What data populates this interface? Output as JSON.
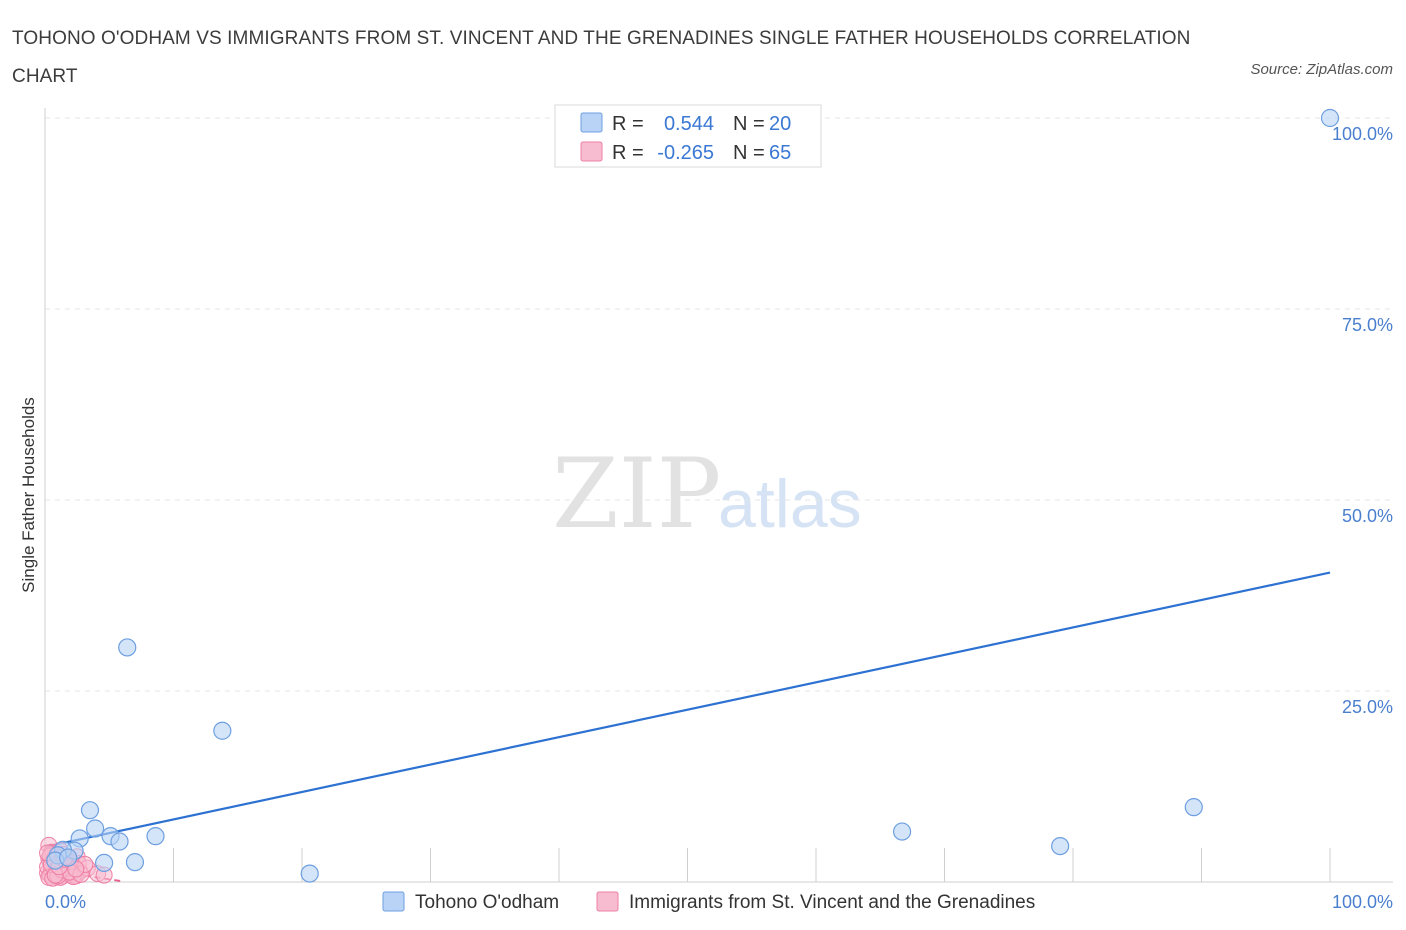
{
  "title": "TOHONO O'ODHAM VS IMMIGRANTS FROM ST. VINCENT AND THE GRENADINES SINGLE FATHER HOUSEHOLDS CORRELATION CHART",
  "source": "Source: ZipAtlas.com",
  "watermark": {
    "zip": "ZIP",
    "atlas": "atlas"
  },
  "legend": {
    "r_label": "R =",
    "n_label": "N =",
    "rows": [
      {
        "r": "0.544",
        "n": "20"
      },
      {
        "r": "-0.265",
        "n": "65"
      }
    ]
  },
  "colors": {
    "blue_fill": "#b8d3f5",
    "blue_stroke": "#6e9fe0",
    "blue_line": "#2d72d2",
    "pink_fill": "#f8bcd0",
    "pink_stroke": "#ee7fa4",
    "pink_line": "#e8608e",
    "value_text": "#3a78d4",
    "grid": "#e4e4e4"
  },
  "chart_data": {
    "type": "scatter",
    "title": "TOHONO O'ODHAM VS IMMIGRANTS FROM ST. VINCENT AND THE GRENADINES SINGLE FATHER HOUSEHOLDS CORRELATION CHART",
    "xlabel": "",
    "ylabel": "Single Father Households",
    "xlim": [
      0,
      100
    ],
    "ylim": [
      0,
      100
    ],
    "x_tick_labels": [
      "0.0%",
      "100.0%"
    ],
    "y_tick_labels": [
      "100.0%",
      "75.0%",
      "50.0%",
      "25.0%"
    ],
    "y_ticks": [
      100,
      75,
      50,
      25
    ],
    "grid": true,
    "legend_position": "top-center",
    "series": [
      {
        "name": "Tohono O'odham",
        "color": "blue",
        "r": 0.544,
        "n": 20,
        "points": [
          [
            100,
            100
          ],
          [
            6.4,
            30.7
          ],
          [
            13.8,
            19.8
          ],
          [
            3.5,
            9.4
          ],
          [
            3.9,
            7.0
          ],
          [
            5.1,
            6.0
          ],
          [
            8.6,
            6.0
          ],
          [
            2.7,
            5.7
          ],
          [
            5.8,
            5.3
          ],
          [
            2.3,
            4.1
          ],
          [
            1.4,
            4.2
          ],
          [
            7.0,
            2.6
          ],
          [
            4.6,
            2.5
          ],
          [
            20.6,
            1.1
          ],
          [
            66.7,
            6.6
          ],
          [
            79.0,
            4.7
          ],
          [
            89.4,
            9.8
          ],
          [
            1.0,
            3.5
          ],
          [
            0.8,
            2.8
          ],
          [
            1.8,
            3.2
          ]
        ],
        "trend": {
          "x": [
            0,
            100
          ],
          "y": [
            4.6,
            40.5
          ]
        }
      },
      {
        "name": "Immigrants from St. Vincent and the Grenadines",
        "color": "pink",
        "r": -0.265,
        "n": 65,
        "points": [
          [
            0.3,
            4.8
          ],
          [
            0.5,
            3.9
          ],
          [
            0.8,
            3.5
          ],
          [
            1.0,
            2.9
          ],
          [
            1.2,
            4.1
          ],
          [
            1.4,
            3.6
          ],
          [
            0.4,
            2.6
          ],
          [
            0.6,
            2.1
          ],
          [
            0.9,
            1.8
          ],
          [
            1.1,
            2.4
          ],
          [
            1.3,
            1.9
          ],
          [
            1.5,
            2.7
          ],
          [
            1.7,
            3.1
          ],
          [
            1.9,
            2.2
          ],
          [
            2.1,
            1.6
          ],
          [
            2.3,
            2.0
          ],
          [
            2.5,
            3.3
          ],
          [
            2.7,
            1.4
          ],
          [
            0.2,
            1.2
          ],
          [
            0.4,
            0.9
          ],
          [
            0.7,
            1.1
          ],
          [
            0.9,
            0.7
          ],
          [
            1.2,
            1.3
          ],
          [
            1.4,
            0.8
          ],
          [
            1.6,
            1.5
          ],
          [
            1.8,
            1.0
          ],
          [
            2.0,
            0.9
          ],
          [
            2.2,
            1.2
          ],
          [
            2.4,
            0.8
          ],
          [
            0.3,
            3.1
          ],
          [
            0.5,
            1.6
          ],
          [
            0.8,
            2.5
          ],
          [
            1.0,
            1.4
          ],
          [
            1.3,
            2.8
          ],
          [
            1.5,
            1.7
          ],
          [
            1.7,
            2.3
          ],
          [
            0.6,
            3.7
          ],
          [
            1.1,
            3.2
          ],
          [
            1.6,
            1.1
          ],
          [
            2.6,
            2.4
          ],
          [
            3.3,
            1.8
          ],
          [
            4.1,
            1.1
          ],
          [
            4.6,
            0.9
          ],
          [
            0.2,
            2.0
          ],
          [
            0.4,
            3.4
          ],
          [
            0.7,
            2.9
          ],
          [
            0.9,
            1.5
          ],
          [
            1.2,
            0.6
          ],
          [
            1.4,
            2.2
          ],
          [
            1.8,
            1.8
          ],
          [
            2.0,
            2.6
          ],
          [
            2.2,
            0.7
          ],
          [
            0.3,
            0.6
          ],
          [
            0.6,
            0.5
          ],
          [
            1.0,
            0.8
          ],
          [
            1.3,
            1.6
          ],
          [
            1.9,
            1.3
          ],
          [
            2.8,
            1.0
          ],
          [
            3.1,
            2.3
          ],
          [
            0.5,
            2.3
          ],
          [
            0.8,
            0.9
          ],
          [
            1.1,
            2.0
          ],
          [
            1.5,
            3.0
          ],
          [
            2.4,
            1.7
          ],
          [
            0.2,
            3.8
          ]
        ],
        "trend": {
          "x": [
            0,
            6
          ],
          "y": [
            1.6,
            0.1
          ]
        }
      }
    ]
  },
  "bottom_legend": [
    {
      "label": "Tohono O'odham"
    },
    {
      "label": "Immigrants from St. Vincent and the Grenadines"
    }
  ]
}
